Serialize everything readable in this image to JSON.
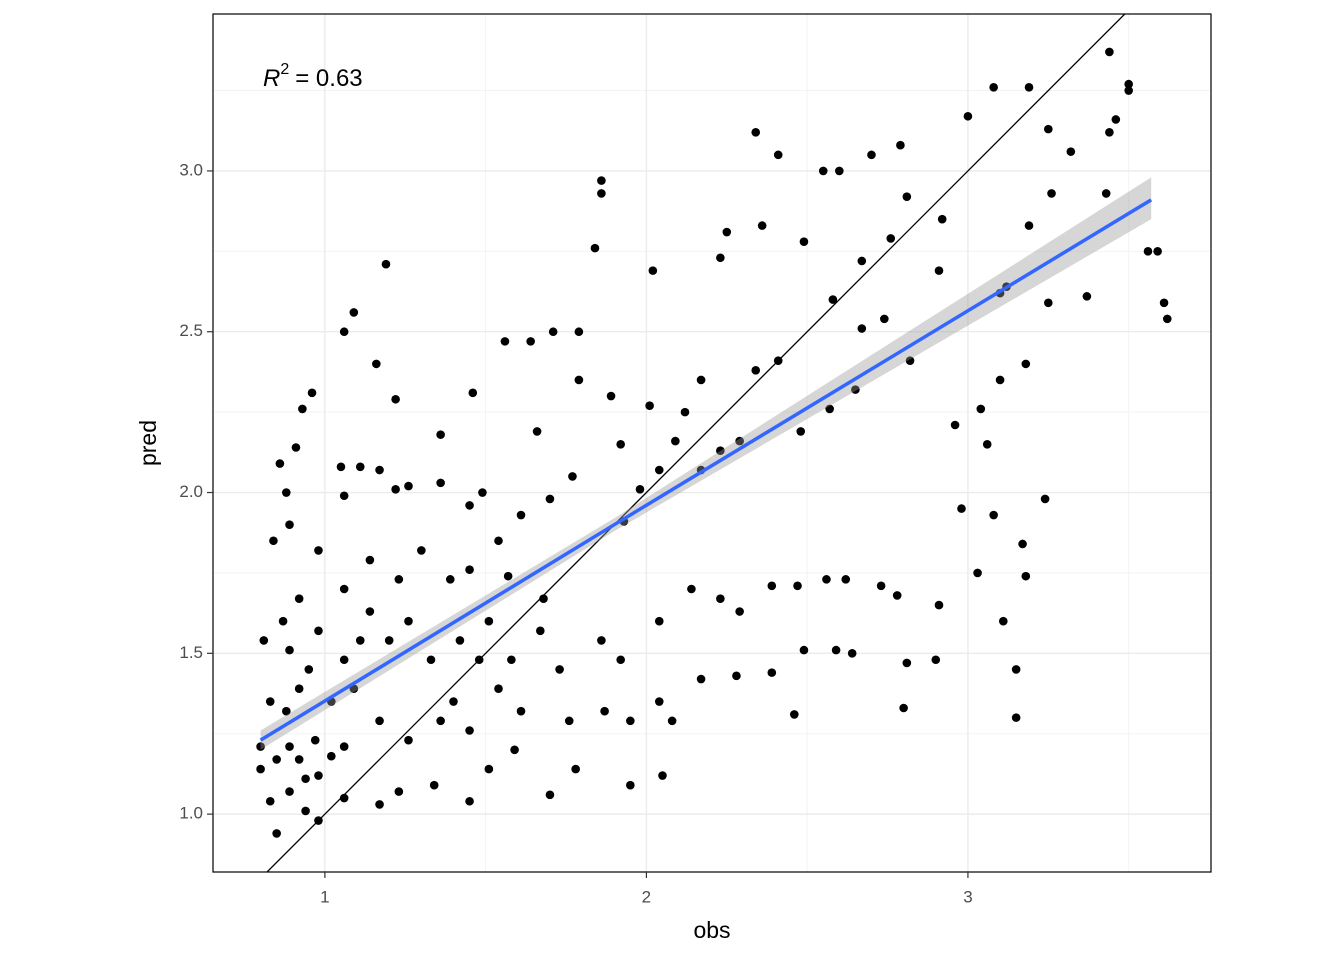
{
  "chart_data": {
    "type": "scatter",
    "x_label": "obs",
    "y_label": "pred",
    "annotation": {
      "variable": "R",
      "exponent": "2",
      "text": "= 0.63"
    },
    "xlim": [
      0.652,
      3.756
    ],
    "ylim": [
      0.82,
      3.488
    ],
    "xticks": [
      1,
      2,
      3
    ],
    "yticks": [
      {
        "value": 1,
        "label": "1.0"
      },
      {
        "value": 1.5,
        "label": "1.5"
      },
      {
        "value": 2,
        "label": "2.0"
      },
      {
        "value": 2.5,
        "label": "2.5"
      },
      {
        "value": 3,
        "label": "3.0"
      }
    ],
    "grid": true,
    "identity_line": true,
    "color": "#000000",
    "x": [
      1.19,
      1.09,
      1.06,
      0.96,
      0.93,
      0.91,
      1.16,
      1.22,
      1.36,
      1.46,
      1.56,
      1.64,
      1.71,
      1.79,
      1.86,
      1.86,
      1.84,
      2.02,
      2.34,
      2.41,
      2.36,
      2.25,
      2.23,
      2.49,
      2.55,
      2.6,
      2.7,
      2.79,
      3.0,
      3.08,
      3.19,
      3.44,
      3.5,
      3.5,
      3.44,
      3.46,
      3.25,
      3.32,
      3.26,
      3.43,
      3.56,
      3.59,
      3.61,
      3.62,
      3.37,
      3.24,
      3.17,
      3.18,
      3.15,
      3.15,
      3.11,
      3.08,
      3.03,
      2.81,
      2.8,
      2.64,
      2.59,
      2.49,
      2.39,
      2.46,
      2.39,
      2.47,
      2.56,
      2.62,
      2.73,
      2.78,
      2.91,
      2.9,
      2.98,
      2.96,
      3.04,
      3.06,
      3.1,
      3.18,
      3.1,
      3.12,
      3.25,
      3.19,
      2.91,
      2.92,
      2.81,
      2.76,
      2.67,
      2.58,
      2.67,
      2.74,
      2.82,
      2.65,
      2.57,
      2.48,
      2.41,
      2.34,
      2.29,
      2.23,
      2.17,
      2.09,
      2.12,
      2.17,
      2.04,
      1.98,
      1.93,
      1.92,
      2.01,
      1.89,
      1.77,
      1.79,
      1.66,
      1.7,
      1.61,
      1.54,
      1.49,
      1.45,
      1.36,
      1.26,
      1.22,
      1.17,
      1.11,
      1.05,
      1.06,
      0.98,
      0.89,
      0.88,
      0.86,
      0.84,
      0.81,
      0.87,
      0.92,
      0.98,
      1.06,
      1.14,
      1.2,
      1.26,
      1.33,
      1.42,
      1.51,
      1.58,
      1.67,
      1.73,
      1.86,
      1.92,
      2.04,
      2.14,
      2.23,
      2.29,
      2.17,
      2.04,
      2.05,
      1.95,
      1.78,
      1.7,
      1.59,
      1.51,
      1.45,
      1.34,
      1.23,
      1.17,
      1.06,
      0.98,
      0.94,
      0.85,
      0.83,
      0.8,
      0.8,
      0.85,
      0.89,
      0.92,
      0.97,
      1.02,
      1.06,
      0.94,
      0.98,
      0.89,
      0.83,
      0.88,
      0.92,
      1.02,
      1.09,
      1.17,
      1.26,
      1.36,
      1.45,
      1.54,
      1.61,
      1.76,
      1.87,
      1.95,
      2.08,
      2.28,
      1.14,
      1.23,
      1.3,
      1.39,
      1.45,
      1.57,
      1.68,
      1.48,
      1.4,
      1.11,
      1.06,
      0.95,
      0.89
    ],
    "values": [
      2.71,
      2.56,
      2.5,
      2.31,
      2.26,
      2.14,
      2.4,
      2.29,
      2.18,
      2.31,
      2.47,
      2.47,
      2.5,
      2.5,
      2.93,
      2.97,
      2.76,
      2.69,
      3.12,
      3.05,
      2.83,
      2.81,
      2.73,
      2.78,
      3.0,
      3.0,
      3.05,
      3.08,
      3.17,
      3.26,
      3.26,
      3.37,
      3.27,
      3.25,
      3.12,
      3.16,
      3.13,
      3.06,
      2.93,
      2.93,
      2.75,
      2.75,
      2.59,
      2.54,
      2.61,
      1.98,
      1.84,
      1.74,
      1.45,
      1.3,
      1.6,
      1.93,
      1.75,
      1.47,
      1.33,
      1.5,
      1.51,
      1.51,
      1.44,
      1.31,
      1.71,
      1.71,
      1.73,
      1.73,
      1.71,
      1.68,
      1.65,
      1.48,
      1.95,
      2.21,
      2.26,
      2.15,
      2.35,
      2.4,
      2.62,
      2.64,
      2.59,
      2.83,
      2.69,
      2.85,
      2.92,
      2.79,
      2.72,
      2.6,
      2.51,
      2.54,
      2.41,
      2.32,
      2.26,
      2.19,
      2.41,
      2.38,
      2.16,
      2.13,
      2.07,
      2.16,
      2.25,
      2.35,
      2.07,
      2.01,
      1.91,
      2.15,
      2.27,
      2.3,
      2.05,
      2.35,
      2.19,
      1.98,
      1.93,
      1.85,
      2.0,
      1.96,
      2.03,
      2.02,
      2.01,
      2.07,
      2.08,
      2.08,
      1.99,
      1.82,
      1.9,
      2.0,
      2.09,
      1.85,
      1.54,
      1.6,
      1.67,
      1.57,
      1.7,
      1.63,
      1.54,
      1.6,
      1.48,
      1.54,
      1.6,
      1.48,
      1.57,
      1.45,
      1.54,
      1.48,
      1.6,
      1.7,
      1.67,
      1.63,
      1.42,
      1.35,
      1.12,
      1.09,
      1.14,
      1.06,
      1.2,
      1.14,
      1.04,
      1.09,
      1.07,
      1.03,
      1.05,
      0.98,
      1.01,
      0.94,
      1.04,
      1.14,
      1.21,
      1.17,
      1.21,
      1.17,
      1.23,
      1.18,
      1.21,
      1.11,
      1.12,
      1.07,
      1.35,
      1.32,
      1.39,
      1.35,
      1.39,
      1.29,
      1.23,
      1.29,
      1.26,
      1.39,
      1.32,
      1.29,
      1.32,
      1.29,
      1.29,
      1.43,
      1.79,
      1.73,
      1.82,
      1.73,
      1.76,
      1.74,
      1.67,
      1.48,
      1.35,
      1.54,
      1.48,
      1.45,
      1.51
    ],
    "fit": {
      "color": "#3366FF",
      "x": [
        0.8,
        1.9,
        3.57
      ],
      "values": [
        1.23,
        1.9,
        2.91
      ],
      "ci_lower": [
        1.2,
        1.88,
        2.85
      ],
      "ci_upper": [
        1.26,
        1.92,
        2.98
      ]
    }
  }
}
